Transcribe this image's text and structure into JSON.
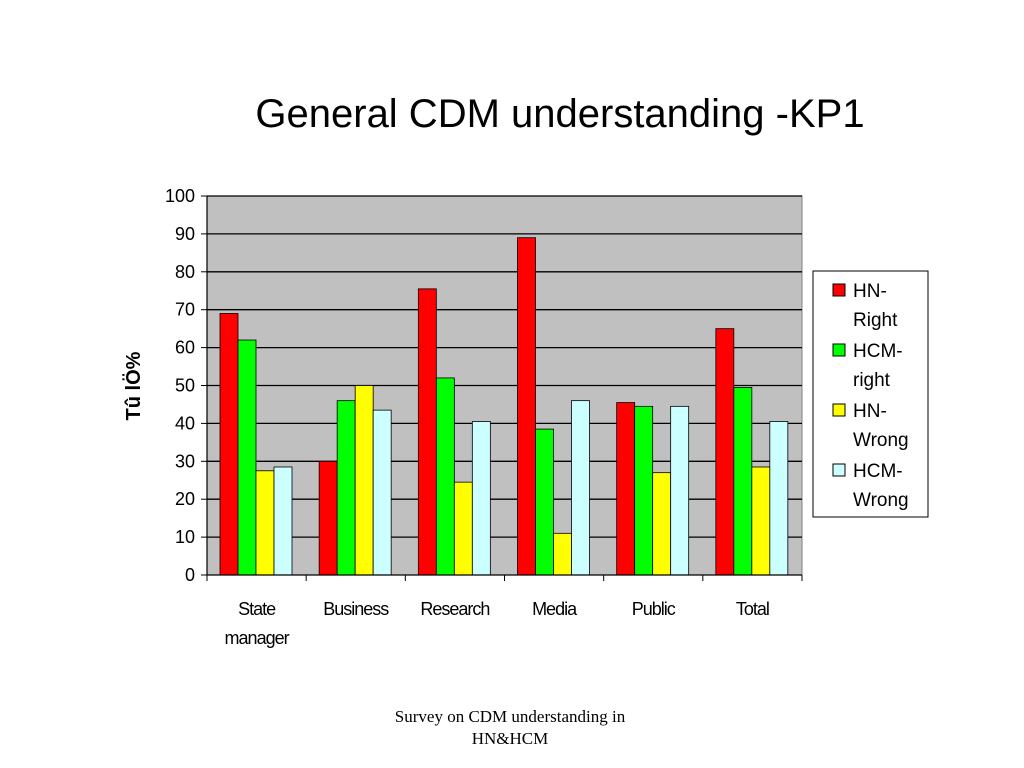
{
  "slide": {
    "title": "General CDM understanding -KP1",
    "footer_line1": "Survey on CDM understanding in",
    "footer_line2": "HN&HCM"
  },
  "chart_data": {
    "type": "bar",
    "title": "General CDM understanding -KP1",
    "ylabel": "Tû lÖ%",
    "xlabel": "",
    "ylim": [
      0,
      100
    ],
    "yticks": [
      0,
      10,
      20,
      30,
      40,
      50,
      60,
      70,
      80,
      90,
      100
    ],
    "grid": true,
    "legend_position": "right",
    "plot_background": "#c0c0c0",
    "categories": [
      [
        "State",
        "manager"
      ],
      [
        "Business"
      ],
      [
        "Research"
      ],
      [
        "Media"
      ],
      [
        "Public"
      ],
      [
        "Total"
      ]
    ],
    "series": [
      {
        "name": "HN-Right",
        "legend_lines": [
          "HN-",
          "Right"
        ],
        "color": "#ff0000",
        "values": [
          69,
          30,
          75.5,
          89,
          45.5,
          65
        ]
      },
      {
        "name": "HCM-right",
        "legend_lines": [
          "HCM-",
          "right"
        ],
        "color": "#00ff00",
        "values": [
          62,
          46,
          52,
          38.5,
          44.5,
          49.5
        ]
      },
      {
        "name": "HN-Wrong",
        "legend_lines": [
          "HN-",
          "Wrong"
        ],
        "color": "#ffff00",
        "values": [
          27.5,
          50,
          24.5,
          11,
          27,
          28.5
        ]
      },
      {
        "name": "HCM-Wrong",
        "legend_lines": [
          "HCM-",
          "Wrong"
        ],
        "color": "#ccffff",
        "values": [
          28.5,
          43.5,
          40.5,
          46,
          44.5,
          40.5
        ]
      }
    ]
  }
}
